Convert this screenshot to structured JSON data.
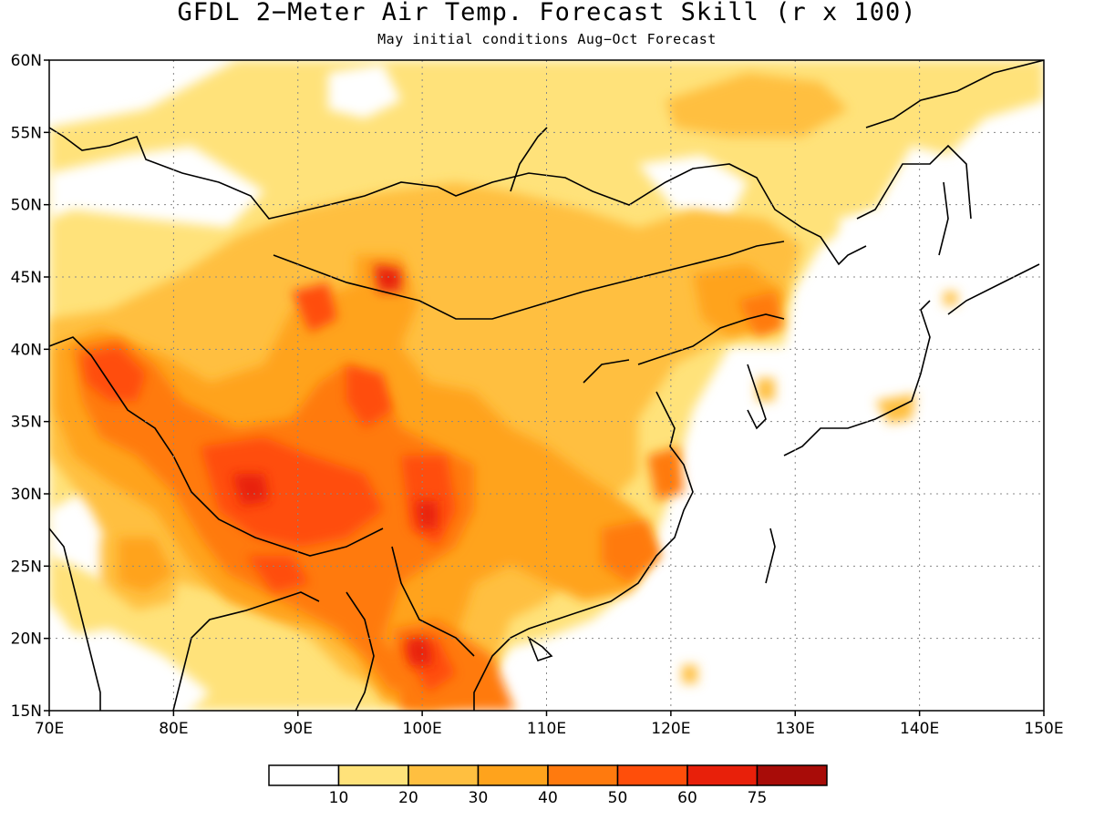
{
  "title": "GFDL 2−Meter Air Temp. Forecast Skill (r x 100)",
  "subtitle": "May initial conditions  Aug−Oct Forecast",
  "map": {
    "lon_range": [
      70,
      150
    ],
    "lat_range": [
      15,
      60
    ],
    "x_ticks": [
      "70E",
      "80E",
      "90E",
      "100E",
      "110E",
      "120E",
      "130E",
      "140E",
      "150E"
    ],
    "y_ticks": [
      "15N",
      "20N",
      "25N",
      "30N",
      "35N",
      "40N",
      "45N",
      "50N",
      "55N",
      "60N"
    ],
    "gridlines": true
  },
  "colorbar": {
    "colors": [
      "#ffffff",
      "#ffe27a",
      "#ffbf40",
      "#ffa31c",
      "#ff7a0e",
      "#ff4e0a",
      "#e8200a",
      "#a80c08"
    ],
    "labels": [
      "10",
      "20",
      "30",
      "40",
      "50",
      "60",
      "75"
    ]
  }
}
